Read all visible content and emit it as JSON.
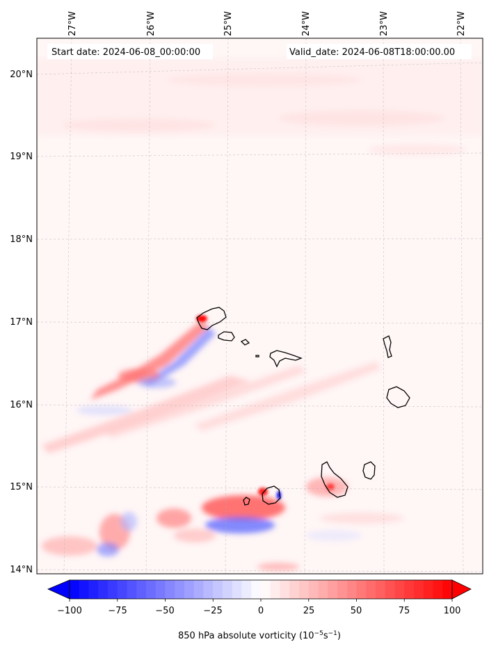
{
  "header": {
    "start_date": "Start date: 2024-06-08_00:00:00",
    "valid_date": "Valid_date: 2024-06-08T18:00:00.00"
  },
  "map": {
    "variable": "850 hPa absolute vorticity",
    "lon_labels": [
      "27°W",
      "26°W",
      "25°W",
      "24°W",
      "23°W",
      "22°W"
    ],
    "lat_labels": [
      "20°N",
      "19°N",
      "18°N",
      "17°N",
      "16°N",
      "15°N",
      "14°N"
    ],
    "coastline_color": "#000000",
    "gridlines": true
  },
  "colorbar": {
    "tick_labels": [
      "−100",
      "−75",
      "−50",
      "−25",
      "0",
      "25",
      "50",
      "75",
      "100"
    ],
    "label_prefix": "850 hPa absolute vorticity (10",
    "label_exp1": "−5",
    "label_mid": "s",
    "label_exp2": "−1",
    "label_suffix": ")",
    "min": -100,
    "max": 100,
    "colormap": "bwr",
    "color_low": "#0000ff",
    "color_mid": "#ffffff",
    "color_high": "#ff0000"
  }
}
